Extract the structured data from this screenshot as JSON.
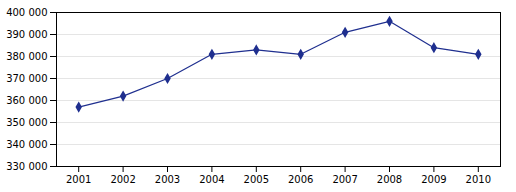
{
  "chart_data": {
    "type": "line",
    "x": [
      2001,
      2002,
      2003,
      2004,
      2005,
      2006,
      2007,
      2008,
      2009,
      2010
    ],
    "values": [
      357000,
      362000,
      370000,
      381000,
      383000,
      381000,
      391000,
      396000,
      384000,
      381000
    ],
    "color": "#1F2F8F",
    "marker": "diamond",
    "xlim": [
      2000.5,
      2010.5
    ],
    "xticks": [
      2001,
      2002,
      2003,
      2004,
      2005,
      2006,
      2007,
      2008,
      2009,
      2010
    ],
    "ylim": [
      330000,
      400000
    ],
    "yticks": [
      {
        "value": 330000,
        "label": "330 000"
      },
      {
        "value": 340000,
        "label": "340 000"
      },
      {
        "value": 350000,
        "label": "350 000"
      },
      {
        "value": 360000,
        "label": "360 000"
      },
      {
        "value": 370000,
        "label": "370 000"
      },
      {
        "value": 380000,
        "label": "380 000"
      },
      {
        "value": 390000,
        "label": "390 000"
      },
      {
        "value": 400000,
        "label": "400 000"
      }
    ],
    "grid": true
  }
}
